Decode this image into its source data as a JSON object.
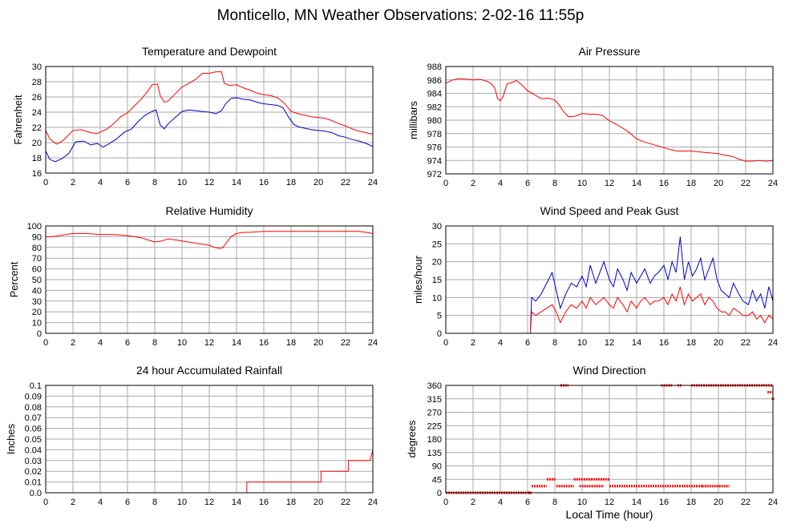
{
  "page": {
    "title": "Monticello, MN Weather Observations: 2-02-16 11:55p",
    "x_axis_title": "Local Time (hour)"
  },
  "colors": {
    "series_red": "#ff0000",
    "series_blue": "#0000cc",
    "grid": "#aaaaaa",
    "frame": "#000000"
  },
  "chart_data": [
    {
      "id": "temp",
      "type": "line",
      "title": "Temperature and Dewpoint",
      "xlabel": "",
      "ylabel": "Fahrenheit",
      "xlim": [
        0,
        24
      ],
      "ylim": [
        16,
        30
      ],
      "xticks": [
        0,
        2,
        4,
        6,
        8,
        10,
        12,
        14,
        16,
        18,
        20,
        22,
        24
      ],
      "yticks": [
        16,
        18,
        20,
        22,
        24,
        26,
        28,
        30
      ],
      "grid": true,
      "series": [
        {
          "color": "#ff0000",
          "x": [
            0,
            0.3,
            0.8,
            1.3,
            2,
            2.6,
            3.3,
            3.8,
            4.5,
            5,
            5.5,
            6,
            6.5,
            7,
            7.5,
            7.8,
            8.2,
            8.4,
            8.7,
            9,
            9.5,
            10,
            10.5,
            11,
            11.5,
            12,
            12.5,
            12.9,
            13.1,
            13.5,
            14,
            14.5,
            15,
            15.5,
            16,
            16.5,
            17,
            17.5,
            18,
            18.5,
            19,
            19.5,
            20,
            20.5,
            21,
            21.5,
            22,
            22.5,
            23,
            23.5,
            24
          ],
          "y": [
            21.6,
            20.5,
            19.8,
            20.3,
            21.6,
            21.7,
            21.3,
            21.2,
            21.8,
            22.5,
            23.4,
            23.9,
            24.8,
            25.7,
            26.8,
            27.6,
            27.7,
            26.2,
            25.3,
            25.5,
            26.4,
            27.3,
            27.8,
            28.3,
            29.1,
            29.1,
            29.3,
            29.3,
            27.8,
            27.5,
            27.6,
            27.2,
            26.9,
            26.5,
            26.3,
            26.2,
            25.9,
            25.2,
            24.1,
            23.8,
            23.6,
            23.4,
            23.3,
            23.2,
            22.9,
            22.5,
            22.2,
            21.8,
            21.5,
            21.3,
            21.1
          ]
        },
        {
          "color": "#0000cc",
          "x": [
            0,
            0.3,
            0.7,
            1.2,
            1.7,
            2.2,
            2.8,
            3.3,
            3.8,
            4.2,
            4.6,
            5.2,
            5.8,
            6.3,
            6.8,
            7.3,
            7.8,
            8.1,
            8.4,
            8.7,
            9,
            9.5,
            10,
            10.5,
            11,
            11.5,
            12,
            12.5,
            12.9,
            13.2,
            13.6,
            14,
            14.5,
            15,
            15.5,
            16,
            16.5,
            17,
            17.4,
            17.8,
            18.2,
            18.5,
            19,
            19.5,
            20,
            20.5,
            21,
            21.5,
            22,
            22.5,
            23,
            23.5,
            24
          ],
          "y": [
            18.9,
            17.8,
            17.5,
            17.9,
            18.6,
            20.1,
            20.2,
            19.7,
            19.9,
            19.4,
            19.8,
            20.5,
            21.4,
            21.8,
            22.8,
            23.6,
            24.1,
            24.3,
            22.3,
            21.8,
            22.5,
            23.3,
            24.1,
            24.3,
            24.2,
            24.1,
            24.0,
            23.8,
            24.2,
            25.1,
            25.8,
            25.9,
            25.7,
            25.6,
            25.3,
            25.1,
            25.0,
            24.9,
            24.6,
            23.4,
            22.4,
            22.1,
            21.9,
            21.7,
            21.6,
            21.5,
            21.3,
            20.9,
            20.7,
            20.4,
            20.2,
            19.9,
            19.5
          ]
        }
      ]
    },
    {
      "id": "pressure",
      "type": "line",
      "title": "Air Pressure",
      "xlabel": "",
      "ylabel": "millibars",
      "xlim": [
        0,
        24
      ],
      "ylim": [
        972,
        988
      ],
      "xticks": [
        0,
        2,
        4,
        6,
        8,
        10,
        12,
        14,
        16,
        18,
        20,
        22,
        24
      ],
      "yticks": [
        972,
        974,
        976,
        978,
        980,
        982,
        984,
        986,
        988
      ],
      "grid": true,
      "series": [
        {
          "color": "#ff0000",
          "x": [
            0,
            0.5,
            1,
            1.5,
            2,
            2.5,
            3,
            3.3,
            3.6,
            3.8,
            4,
            4.2,
            4.5,
            4.8,
            5.2,
            5.6,
            6,
            6.5,
            7,
            7.5,
            8,
            8.3,
            8.6,
            9,
            9.5,
            10,
            10.5,
            11,
            11.5,
            12,
            12.5,
            13,
            13.5,
            14,
            14.5,
            15,
            15.5,
            16,
            16.5,
            17,
            17.5,
            18,
            18.5,
            19,
            19.5,
            20,
            20.5,
            21,
            21.5,
            22,
            22.5,
            23,
            23.5,
            24
          ],
          "y": [
            985.5,
            986.0,
            986.2,
            986.1,
            986.0,
            986.1,
            985.8,
            985.5,
            984.8,
            983.2,
            982.9,
            983.5,
            985.4,
            985.6,
            985.9,
            985.2,
            984.4,
            983.8,
            983.2,
            983.3,
            983.0,
            982.3,
            981.4,
            980.5,
            980.6,
            981.0,
            980.9,
            980.9,
            980.7,
            979.9,
            979.4,
            978.8,
            978.1,
            977.2,
            976.8,
            976.5,
            976.2,
            975.9,
            975.6,
            975.4,
            975.4,
            975.4,
            975.3,
            975.2,
            975.1,
            975.0,
            974.8,
            974.6,
            974.2,
            973.9,
            973.9,
            974.0,
            973.9,
            974.0
          ]
        }
      ]
    },
    {
      "id": "humidity",
      "type": "line",
      "title": "Relative Humidity",
      "xlabel": "",
      "ylabel": "Percent",
      "xlim": [
        0,
        24
      ],
      "ylim": [
        0,
        100
      ],
      "xticks": [
        0,
        2,
        4,
        6,
        8,
        10,
        12,
        14,
        16,
        18,
        20,
        22,
        24
      ],
      "yticks": [
        0,
        10,
        20,
        30,
        40,
        50,
        60,
        70,
        80,
        90,
        100
      ],
      "grid": true,
      "series": [
        {
          "color": "#ff0000",
          "x": [
            0,
            0.5,
            1,
            1.5,
            2,
            3,
            4,
            5,
            6,
            6.5,
            7,
            7.5,
            8,
            8.5,
            9,
            9.5,
            10,
            10.5,
            11,
            11.5,
            12,
            12.4,
            12.8,
            13,
            13.3,
            13.6,
            14,
            14.5,
            15,
            16,
            17,
            18,
            19,
            20,
            21,
            22,
            23,
            23.5,
            24
          ],
          "y": [
            90,
            90,
            91,
            92,
            93,
            93,
            92,
            92,
            91,
            90,
            89,
            87,
            85,
            86,
            88,
            87,
            86,
            85,
            84,
            83,
            82,
            80,
            79,
            80,
            85,
            90,
            93,
            94,
            94,
            95,
            95,
            95,
            95,
            95,
            95,
            95,
            95,
            94,
            93
          ]
        }
      ]
    },
    {
      "id": "wind",
      "type": "line",
      "title": "Wind Speed and Peak Gust",
      "xlabel": "",
      "ylabel": "miles/hour",
      "xlim": [
        0,
        24
      ],
      "ylim": [
        0,
        30
      ],
      "xticks": [
        0,
        2,
        4,
        6,
        8,
        10,
        12,
        14,
        16,
        18,
        20,
        22,
        24
      ],
      "yticks": [
        0,
        5,
        10,
        15,
        20,
        25,
        30
      ],
      "grid": true,
      "series": [
        {
          "color": "#0000cc",
          "x": [
            0,
            6.2,
            6.3,
            6.6,
            7,
            7.4,
            7.8,
            8.1,
            8.4,
            8.8,
            9.2,
            9.6,
            10,
            10.3,
            10.6,
            11,
            11.3,
            11.6,
            12,
            12.3,
            12.6,
            13,
            13.3,
            13.6,
            14,
            14.3,
            14.6,
            15,
            15.3,
            15.6,
            16,
            16.3,
            16.6,
            16.9,
            17.2,
            17.5,
            17.8,
            18.1,
            18.4,
            18.7,
            19,
            19.3,
            19.6,
            19.9,
            20.2,
            20.5,
            20.8,
            21.1,
            21.5,
            21.8,
            22.2,
            22.5,
            22.8,
            23.1,
            23.4,
            23.7,
            24
          ],
          "y": [
            0,
            0,
            10,
            9,
            11,
            14,
            17,
            12,
            7,
            11,
            14,
            13,
            16,
            13,
            19,
            14,
            17,
            20,
            15,
            13,
            18,
            15,
            12,
            17,
            14,
            16,
            18,
            14,
            16,
            17,
            19,
            15,
            20,
            17,
            27,
            15,
            20,
            16,
            18,
            21,
            15,
            18,
            21,
            15,
            12,
            11,
            10,
            14,
            11,
            9,
            8,
            12,
            9,
            11,
            7,
            13,
            9
          ]
        },
        {
          "color": "#ff0000",
          "x": [
            0,
            6.2,
            6.3,
            6.6,
            7,
            7.4,
            7.8,
            8.1,
            8.4,
            8.8,
            9.2,
            9.6,
            10,
            10.3,
            10.6,
            11,
            11.3,
            11.6,
            12,
            12.3,
            12.6,
            13,
            13.3,
            13.6,
            14,
            14.3,
            14.6,
            15,
            15.3,
            15.6,
            16,
            16.3,
            16.6,
            16.9,
            17.2,
            17.5,
            17.8,
            18.1,
            18.4,
            18.7,
            19,
            19.3,
            19.6,
            19.9,
            20.2,
            20.5,
            20.8,
            21.1,
            21.5,
            21.8,
            22.2,
            22.5,
            22.8,
            23.1,
            23.4,
            23.7,
            24
          ],
          "y": [
            0,
            0,
            6,
            5,
            6,
            7,
            8,
            6,
            3,
            6,
            8,
            7,
            9,
            7,
            10,
            8,
            9,
            10,
            8,
            7,
            10,
            8,
            6,
            9,
            7,
            9,
            10,
            8,
            9,
            9,
            10,
            8,
            11,
            9,
            13,
            8,
            11,
            9,
            10,
            11,
            8,
            10,
            9,
            7,
            6,
            6,
            5,
            7,
            6,
            5,
            5,
            6,
            4,
            5,
            3,
            5,
            4
          ]
        }
      ]
    },
    {
      "id": "rain",
      "type": "line",
      "title": "24 hour Accumulated Rainfall",
      "xlabel": "",
      "ylabel": "Inches",
      "xlim": [
        0,
        24
      ],
      "ylim": [
        0,
        0.1
      ],
      "xticks": [
        0,
        2,
        4,
        6,
        8,
        10,
        12,
        14,
        16,
        18,
        20,
        22,
        24
      ],
      "yticks": [
        0.0,
        0.01,
        0.02,
        0.03,
        0.04,
        0.05,
        0.06,
        0.07,
        0.08,
        0.09,
        0.1
      ],
      "yticklabels": [
        "0.0",
        "0.01",
        "0.02",
        "0.03",
        "0.04",
        "0.05",
        "0.06",
        "0.07",
        "0.08",
        "0.09",
        "0.1"
      ],
      "grid": true,
      "series": [
        {
          "color": "#ff0000",
          "x": [
            0,
            14.75,
            14.75,
            20.2,
            20.2,
            22.2,
            22.2,
            23.8,
            24
          ],
          "y": [
            0,
            0,
            0.01,
            0.01,
            0.02,
            0.02,
            0.03,
            0.03,
            0.04
          ]
        }
      ]
    },
    {
      "id": "direction",
      "type": "scatter",
      "title": "Wind Direction",
      "xlabel": "Local Time (hour)",
      "ylabel": "degrees",
      "xlim": [
        0,
        24
      ],
      "ylim": [
        0,
        360
      ],
      "xticks": [
        0,
        2,
        4,
        6,
        8,
        10,
        12,
        14,
        16,
        18,
        20,
        22,
        24
      ],
      "yticks": [
        0,
        45,
        90,
        135,
        180,
        225,
        270,
        315,
        360
      ],
      "grid": true,
      "series": [
        {
          "color": "#ff0000",
          "segments": [
            {
              "x_start": 0,
              "x_end": 6.3,
              "y": 0
            },
            {
              "x_start": 6.3,
              "x_end": 7.4,
              "y": 22
            },
            {
              "x_start": 7.4,
              "x_end": 8.1,
              "y": 45
            },
            {
              "x_start": 8.1,
              "x_end": 9.4,
              "y": 22
            },
            {
              "x_start": 9.4,
              "x_end": 12,
              "y": 45
            },
            {
              "x_start": 9.8,
              "x_end": 11.6,
              "y": 22
            },
            {
              "x_start": 12,
              "x_end": 18.8,
              "y": 22
            },
            {
              "x_start": 18.8,
              "x_end": 20.8,
              "y": 22
            },
            {
              "x_start": 8.4,
              "x_end": 9.0,
              "y": 360
            },
            {
              "x_start": 15.8,
              "x_end": 16.6,
              "y": 360
            },
            {
              "x_start": 17.0,
              "x_end": 17.3,
              "y": 360
            },
            {
              "x_start": 18.0,
              "x_end": 24,
              "y": 360
            },
            {
              "x_start": 23.6,
              "x_end": 24,
              "y": 337
            }
          ],
          "points": [
            {
              "x": 24,
              "y": 315
            },
            {
              "x": 6.2,
              "y": 0
            }
          ]
        }
      ]
    }
  ]
}
